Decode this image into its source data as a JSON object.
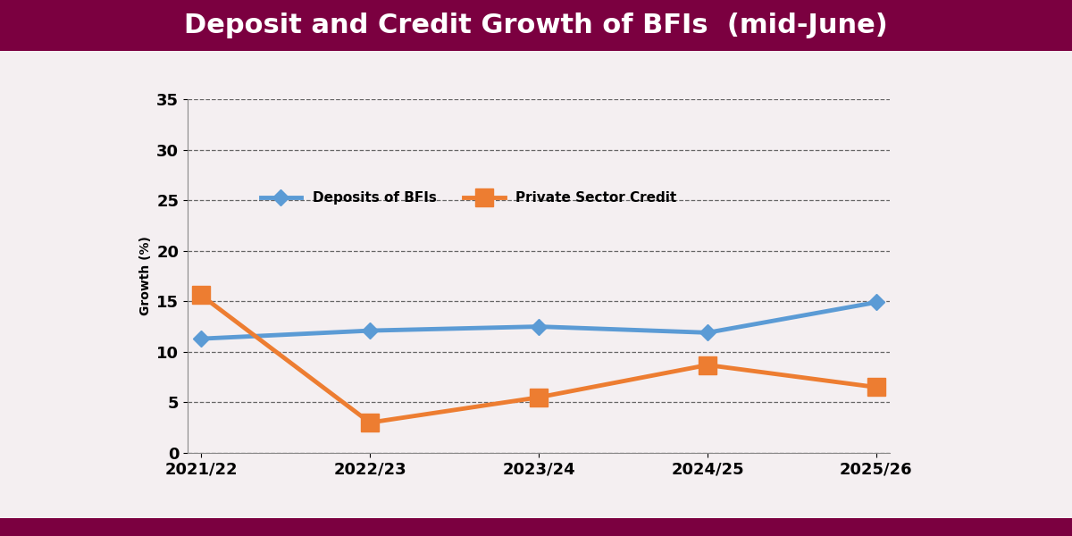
{
  "chart_data": {
    "type": "line",
    "title": "Deposit and Credit Growth of BFIs  (mid-June)",
    "y_label": "Growth (%)",
    "categories": [
      "2021/22",
      "2022/23",
      "2023/24",
      "2024/25",
      "2025/26"
    ],
    "series": [
      {
        "name": "Deposits of BFIs",
        "color": "#5b9bd5",
        "marker": "diamond",
        "values": [
          11.3,
          12.1,
          12.5,
          11.9,
          14.9
        ]
      },
      {
        "name": "Private Sector Credit",
        "color": "#ed7d31",
        "marker": "square",
        "values": [
          15.6,
          3.0,
          5.5,
          8.7,
          6.5
        ]
      }
    ],
    "ylim": [
      0,
      35
    ],
    "yticks": [
      0,
      5,
      10,
      15,
      20,
      25,
      30,
      35
    ],
    "grid": true,
    "legend": "center"
  }
}
